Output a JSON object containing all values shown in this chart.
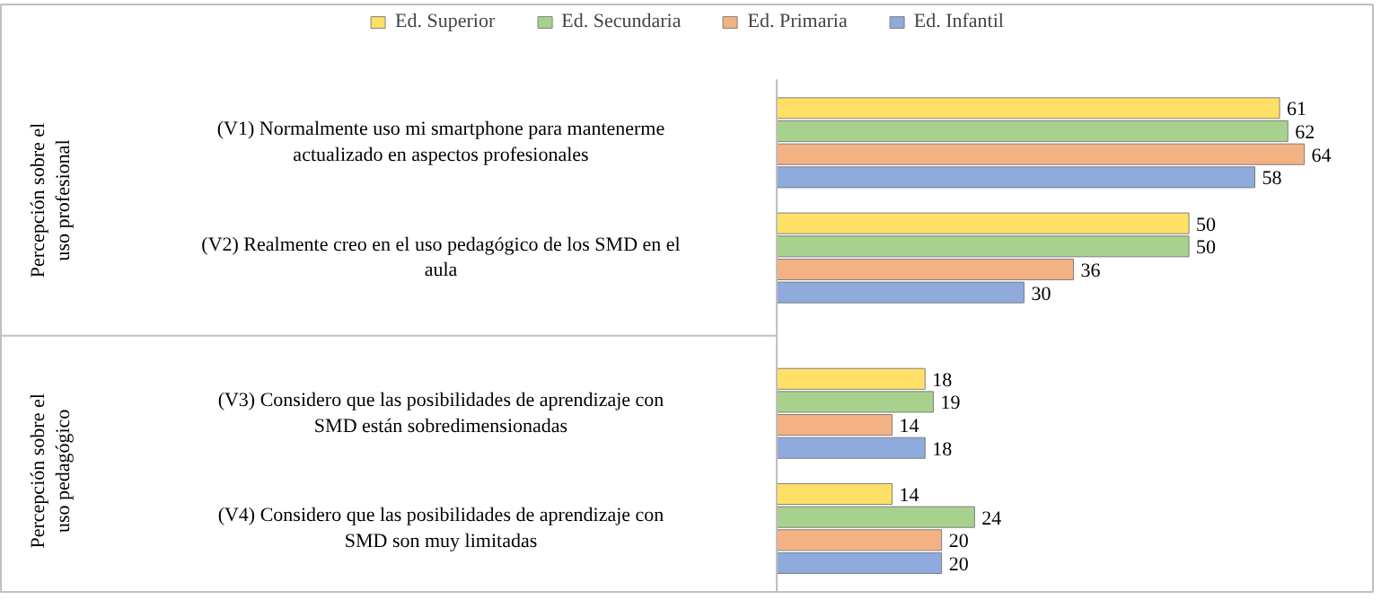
{
  "chart_data": {
    "type": "bar",
    "orientation": "horizontal",
    "data_labels": true,
    "legend": "top",
    "grid": false,
    "categories": [
      "(V1) Normalmente uso mi smartphone para mantenerme actualizado en aspectos profesionales",
      "(V2) Realmente creo en el uso pedagógico de los SMD en el aula",
      "(V3) Considero que las posibilidades de aprendizaje con SMD están sobredimensionadas",
      "(V4) Considero que las posibilidades de aprendizaje con SMD son muy limitadas"
    ],
    "annotations": [
      "Percepción sobre el uso profesional",
      "Percepción sobre el uso pedagógico"
    ],
    "series": [
      {
        "name": "Ed. Superior",
        "color": "#ffe066",
        "values": [
          61,
          50,
          18,
          14
        ]
      },
      {
        "name": "Ed. Secundaria",
        "color": "#a9d18e",
        "values": [
          62,
          50,
          19,
          24
        ]
      },
      {
        "name": "Ed. Primaria",
        "color": "#f4b183",
        "values": [
          64,
          36,
          14,
          20
        ]
      },
      {
        "name": "Ed. Infantil",
        "color": "#8faadc",
        "values": [
          58,
          30,
          18,
          20
        ]
      }
    ]
  }
}
